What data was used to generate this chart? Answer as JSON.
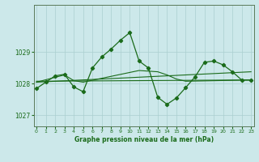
{
  "title": "Graphe pression niveau de la mer (hPa)",
  "background_color": "#cce8ea",
  "grid_color": "#aacfcf",
  "line_color": "#1a6b1a",
  "marker_color": "#1a6b1a",
  "ylim": [
    1026.65,
    1030.5
  ],
  "yticks": [
    1027,
    1028,
    1029
  ],
  "xlim": [
    -0.3,
    23.3
  ],
  "xticks": [
    0,
    1,
    2,
    3,
    4,
    5,
    6,
    7,
    8,
    9,
    10,
    11,
    12,
    13,
    14,
    15,
    16,
    17,
    18,
    19,
    20,
    21,
    22,
    23
  ],
  "series1": [
    1027.85,
    1028.05,
    1028.25,
    1028.3,
    1027.9,
    1027.75,
    1028.5,
    1028.85,
    1029.1,
    1029.38,
    1029.62,
    1028.72,
    1028.5,
    1027.57,
    1027.35,
    1027.55,
    1027.88,
    1028.22,
    1028.68,
    1028.72,
    1028.6,
    1028.38,
    1028.12,
    1028.12
  ],
  "series2_x": [
    0,
    23
  ],
  "series2_y": [
    1028.05,
    1028.38
  ],
  "series3_x": [
    0,
    23
  ],
  "series3_y": [
    1028.08,
    1028.12
  ],
  "series4_x": [
    0,
    3,
    4,
    5,
    11,
    13,
    14,
    15,
    16,
    23
  ],
  "series4_y": [
    1028.05,
    1028.28,
    1028.1,
    1028.05,
    1028.42,
    1028.38,
    1028.28,
    1028.15,
    1028.08,
    1028.12
  ],
  "fig_width": 3.2,
  "fig_height": 2.0,
  "dpi": 100
}
